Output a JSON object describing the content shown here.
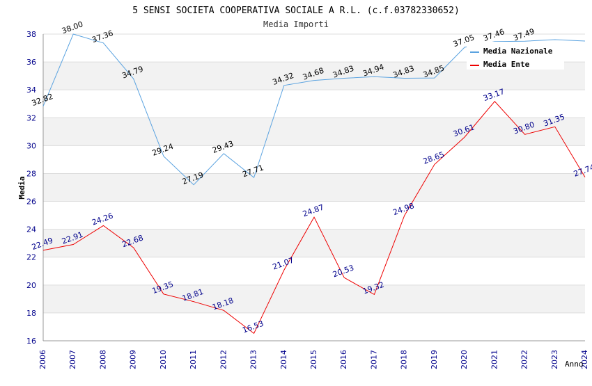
{
  "chart_data": {
    "type": "line",
    "title": "5 SENSI SOCIETA COOPERATIVA SOCIALE A R.L. (c.f.03782330652)",
    "subtitle": "Media Importi",
    "xlabel": "Anno",
    "ylabel": "Media",
    "ylim": [
      16,
      38
    ],
    "yticks": [
      16,
      18,
      20,
      22,
      24,
      26,
      28,
      30,
      32,
      34,
      36,
      38
    ],
    "x": [
      "2006",
      "2007",
      "2008",
      "2009",
      "2010",
      "2011",
      "2012",
      "2013",
      "2014",
      "2015",
      "2016",
      "2017",
      "2018",
      "2019",
      "2020",
      "2021",
      "2022",
      "2023",
      "2024"
    ],
    "grid": "horizontal alternating bands",
    "legend_position": "top-right",
    "series": [
      {
        "name": "Media Nazionale",
        "color": "#5ba3e0",
        "label_color": "#000000",
        "values": [
          32.82,
          38.0,
          37.36,
          34.79,
          29.24,
          27.19,
          29.43,
          27.71,
          34.32,
          34.68,
          34.83,
          34.94,
          34.83,
          34.85,
          37.05,
          37.46,
          37.49,
          37.6,
          37.5
        ],
        "labels": [
          "32.82",
          "38.00",
          "37.36",
          "34.79",
          "29.24",
          "27.19",
          "29.43",
          "27.71",
          "34.32",
          "34.68",
          "34.83",
          "34.94",
          "34.83",
          "34.85",
          "37.05",
          "37.46",
          "37.49",
          "",
          ""
        ]
      },
      {
        "name": "Media Ente",
        "color": "#ee0000",
        "label_color": "#00008b",
        "values": [
          22.49,
          22.91,
          24.26,
          22.68,
          19.35,
          18.81,
          18.18,
          16.53,
          21.07,
          24.87,
          20.53,
          19.32,
          24.98,
          28.65,
          30.61,
          33.17,
          30.8,
          31.35,
          27.74
        ],
        "labels": [
          "22.49",
          "22.91",
          "24.26",
          "22.68",
          "19.35",
          "18.81",
          "18.18",
          "16.53",
          "21.07",
          "24.87",
          "20.53",
          "19.32",
          "24.98",
          "28.65",
          "30.61",
          "33.17",
          "30.80",
          "31.35",
          "27.74"
        ]
      }
    ]
  }
}
